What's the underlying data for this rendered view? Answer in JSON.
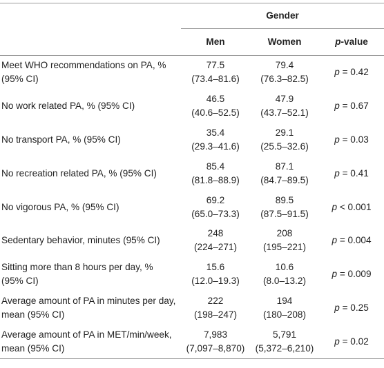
{
  "header": {
    "group": "Gender",
    "columns": [
      "Men",
      "Women",
      {
        "italic": "p",
        "text": "-value"
      }
    ]
  },
  "rows": [
    {
      "label": "Meet WHO recommendations on PA, % (95% CI)",
      "men": [
        "77.5",
        "(73.4–81.6)"
      ],
      "women": [
        "79.4",
        "(76.3–82.5)"
      ],
      "p": [
        "p",
        "= 0.42"
      ]
    },
    {
      "label": "No work related PA, % (95% CI)",
      "men": [
        "46.5",
        "(40.6–52.5)"
      ],
      "women": [
        "47.9",
        "(43.7–52.1)"
      ],
      "p": [
        "p",
        "= 0.67"
      ]
    },
    {
      "label": "No transport PA, % (95% CI)",
      "men": [
        "35.4",
        "(29.3–41.6)"
      ],
      "women": [
        "29.1",
        "(25.5–32.6)"
      ],
      "p": [
        "p",
        "= 0.03"
      ]
    },
    {
      "label": "No recreation related PA, % (95% CI)",
      "men": [
        "85.4",
        "(81.8–88.9)"
      ],
      "women": [
        "87.1",
        "(84.7–89.5)"
      ],
      "p": [
        "p",
        "= 0.41"
      ]
    },
    {
      "label": "No vigorous PA, % (95% CI)",
      "men": [
        "69.2",
        "(65.0–73.3)"
      ],
      "women": [
        "89.5",
        "(87.5–91.5)"
      ],
      "p": [
        "p",
        "< 0.001"
      ]
    },
    {
      "label": "Sedentary behavior, minutes (95% CI)",
      "men": [
        "248",
        "(224–271)"
      ],
      "women": [
        "208",
        "(195–221)"
      ],
      "p": [
        "p",
        "= 0.004"
      ]
    },
    {
      "label": "Sitting more than 8 hours per day, % (95% CI)",
      "men": [
        "15.6",
        "(12.0–19.3)"
      ],
      "women": [
        "10.6",
        "(8.0–13.2)"
      ],
      "p": [
        "p",
        "= 0.009"
      ]
    },
    {
      "label": "Average amount of PA in minutes per day, mean (95% CI)",
      "men": [
        "222",
        "(198–247)"
      ],
      "women": [
        "194",
        "(180–208)"
      ],
      "p": [
        "p",
        "= 0.25"
      ]
    },
    {
      "label": "Average amount of PA in MET/min/week, mean (95% CI)",
      "men": [
        "7,983",
        "(7,097–8,870)"
      ],
      "women": [
        "5,791",
        "(5,372–6,210)"
      ],
      "p": [
        "p",
        "= 0.02"
      ]
    }
  ]
}
